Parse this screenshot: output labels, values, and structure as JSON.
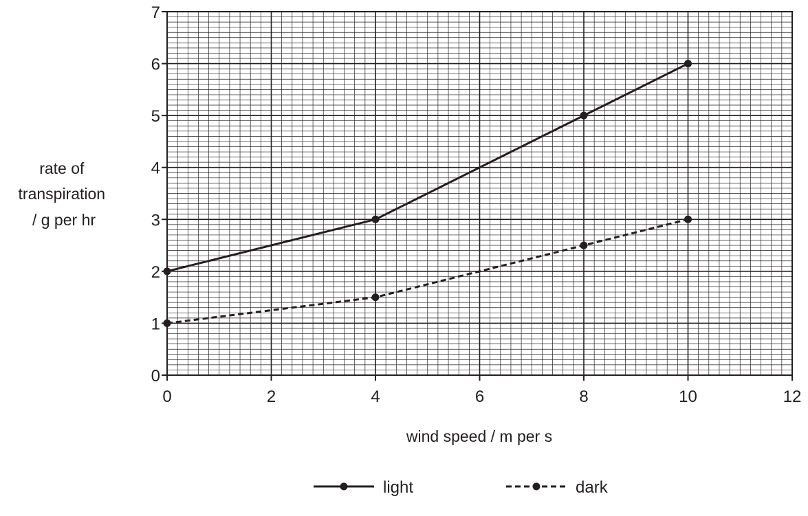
{
  "chart_data": {
    "type": "line",
    "title": "",
    "xlabel": "wind speed / m per s",
    "ylabel_lines": [
      "rate of",
      "transpiration",
      "/ g per hr"
    ],
    "xlim": [
      0,
      12
    ],
    "ylim": [
      0,
      7
    ],
    "x_major_ticks": [
      0,
      2,
      4,
      6,
      8,
      10,
      12
    ],
    "y_major_ticks": [
      0,
      1,
      2,
      3,
      4,
      5,
      6,
      7
    ],
    "x_minor_step": 0.2,
    "y_minor_step": 0.1,
    "grid": true,
    "legend_position": "bottom-center",
    "line_color": "#231f20",
    "grid_color": "#231f20",
    "series": [
      {
        "name": "light",
        "style": "solid",
        "x": [
          0,
          4,
          8,
          10
        ],
        "y": [
          2,
          3,
          5,
          6
        ]
      },
      {
        "name": "dark",
        "style": "dashed",
        "x": [
          0,
          4,
          8,
          10
        ],
        "y": [
          1,
          1.5,
          2.5,
          3
        ]
      }
    ]
  }
}
